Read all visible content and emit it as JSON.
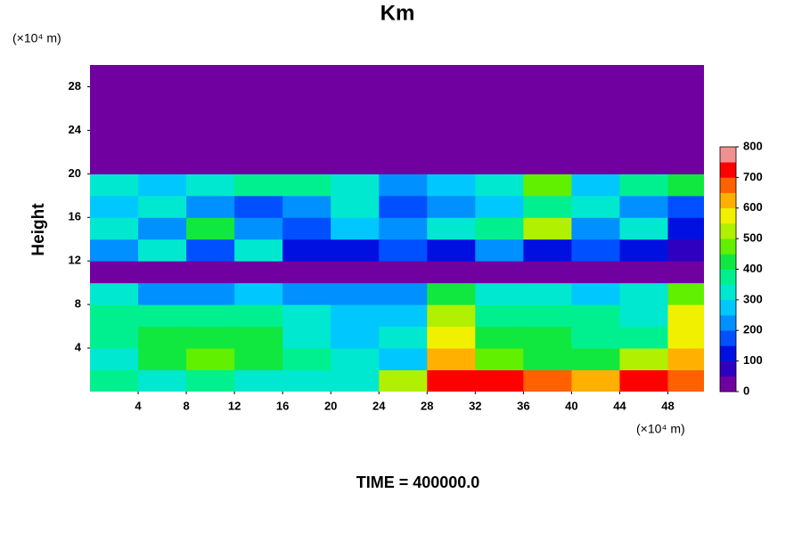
{
  "chart_data": {
    "type": "heatmap",
    "title": "Km",
    "y_unit": "(×10⁴ m)",
    "x_unit": "(×10⁴ m)",
    "ylabel": "Height",
    "footer": "TIME = 400000.0",
    "xlim": [
      0,
      51
    ],
    "ylim": [
      0,
      30
    ],
    "xticks": [
      4,
      8,
      12,
      16,
      20,
      24,
      28,
      32,
      36,
      40,
      44,
      48
    ],
    "yticks": [
      4,
      8,
      12,
      16,
      20,
      24,
      28
    ],
    "x": [
      2,
      6,
      10,
      14,
      18,
      22,
      26,
      30,
      34,
      38,
      42,
      46,
      50
    ],
    "y": [
      1,
      3,
      5,
      7,
      9,
      11,
      13,
      15,
      17,
      19,
      21,
      23,
      25,
      27,
      29
    ],
    "cell_width": 4,
    "cell_height": 2,
    "z": [
      [
        350,
        300,
        350,
        300,
        300,
        300,
        500,
        700,
        700,
        650,
        600,
        700,
        650
      ],
      [
        300,
        400,
        450,
        400,
        350,
        300,
        250,
        600,
        450,
        400,
        400,
        500,
        600
      ],
      [
        350,
        400,
        400,
        400,
        300,
        250,
        300,
        550,
        400,
        400,
        350,
        350,
        550
      ],
      [
        350,
        350,
        350,
        350,
        300,
        250,
        250,
        500,
        350,
        350,
        350,
        300,
        550
      ],
      [
        300,
        200,
        200,
        250,
        200,
        200,
        200,
        400,
        300,
        300,
        250,
        300,
        450
      ],
      [
        0,
        0,
        0,
        0,
        0,
        0,
        0,
        0,
        0,
        0,
        0,
        0,
        0
      ],
      [
        200,
        300,
        150,
        300,
        100,
        100,
        150,
        100,
        200,
        100,
        150,
        100,
        50
      ],
      [
        300,
        200,
        400,
        200,
        150,
        250,
        200,
        300,
        350,
        500,
        200,
        300,
        100
      ],
      [
        250,
        300,
        200,
        150,
        200,
        300,
        150,
        200,
        250,
        350,
        300,
        200,
        150
      ],
      [
        300,
        250,
        300,
        350,
        350,
        300,
        200,
        250,
        300,
        450,
        250,
        350,
        400
      ],
      [
        0,
        0,
        0,
        0,
        0,
        0,
        0,
        0,
        0,
        0,
        0,
        0,
        0
      ],
      [
        0,
        0,
        0,
        0,
        0,
        0,
        0,
        0,
        0,
        0,
        0,
        0,
        0
      ],
      [
        0,
        0,
        0,
        0,
        0,
        0,
        0,
        0,
        0,
        0,
        0,
        0,
        0
      ],
      [
        0,
        0,
        0,
        0,
        0,
        0,
        0,
        0,
        0,
        0,
        0,
        0,
        0
      ],
      [
        0,
        0,
        0,
        0,
        0,
        0,
        0,
        0,
        0,
        0,
        0,
        0,
        0
      ]
    ],
    "clim": [
      0,
      800
    ],
    "cticks": [
      0,
      100,
      200,
      300,
      400,
      500,
      600,
      700,
      800
    ],
    "colors": [
      "#7000a0",
      "#3000c0",
      "#0010e0",
      "#0050ff",
      "#0090ff",
      "#00c8ff",
      "#00e8d0",
      "#00f090",
      "#10e840",
      "#60f000",
      "#b0f000",
      "#f0f000",
      "#ffb000",
      "#ff6000",
      "#ff0000",
      "#f09090"
    ]
  }
}
